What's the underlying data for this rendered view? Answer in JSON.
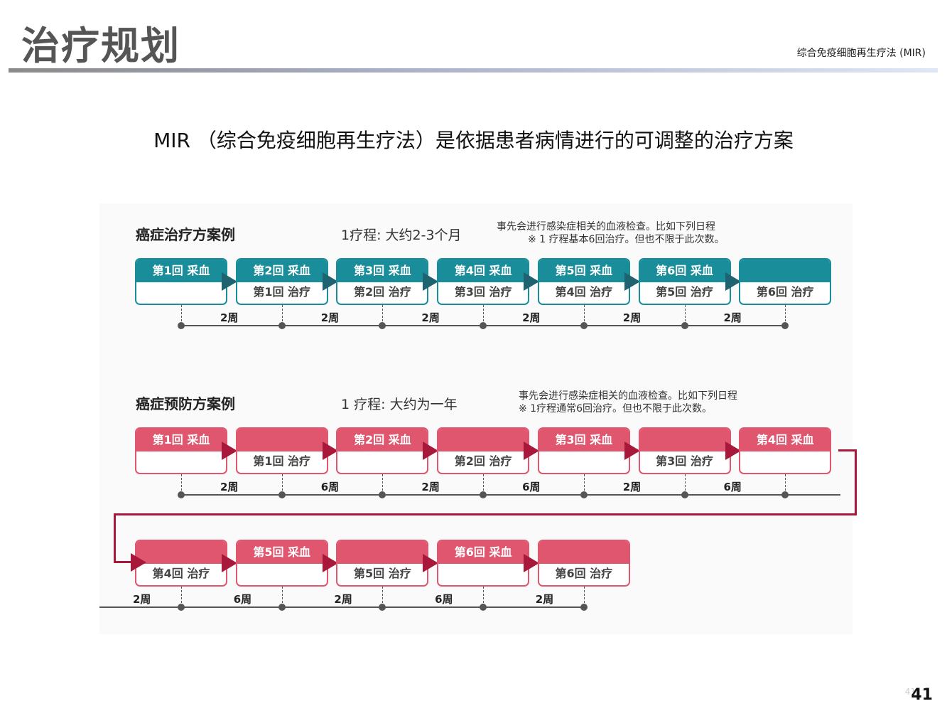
{
  "header": {
    "title": "治疗规划",
    "subtitle": "综合免疫细胞再生疗法 (MIR)"
  },
  "main_heading": "MIR （综合免疫细胞再生疗法）是依据患者病情进行的可调整的治疗方案",
  "treatment_case": {
    "title": "癌症治疗方案例",
    "course": "1疗程: 大约2-3个月",
    "note_line1": "事先会进行感染症相关的血液检查。比如下列日程",
    "note_line2": "※ 1 疗程基本6回治疗。但也不限于此次数。",
    "steps": [
      {
        "top": "第1回 采血",
        "bottom": ""
      },
      {
        "top": "第2回 采血",
        "bottom": "第1回 治疗"
      },
      {
        "top": "第3回 采血",
        "bottom": "第2回 治疗"
      },
      {
        "top": "第4回 采血",
        "bottom": "第3回 治疗"
      },
      {
        "top": "第5回 采血",
        "bottom": "第4回 治疗"
      },
      {
        "top": "第6回 采血",
        "bottom": "第5回 治疗"
      },
      {
        "top": "",
        "bottom": "第6回 治疗"
      }
    ],
    "intervals": [
      "2周",
      "2周",
      "2周",
      "2周",
      "2周",
      "2周"
    ]
  },
  "prevention_case": {
    "title": "癌症预防方案例",
    "course": "1 疗程: 大约为一年",
    "note_line1": "事先会进行感染症相关的血液检查。比如下列日程",
    "note_line2": "※ 1疗程通常6回治疗。但也不限于此次数。",
    "row1_steps": [
      {
        "top": "第1回 采血",
        "bottom": ""
      },
      {
        "top": "",
        "bottom": "第1回 治疗"
      },
      {
        "top": "第2回 采血",
        "bottom": ""
      },
      {
        "top": "",
        "bottom": "第2回 治疗"
      },
      {
        "top": "第3回 采血",
        "bottom": ""
      },
      {
        "top": "",
        "bottom": "第3回 治疗"
      },
      {
        "top": "第4回 采血",
        "bottom": ""
      }
    ],
    "row1_intervals": [
      "2周",
      "6周",
      "2周",
      "6周",
      "2周",
      "6周"
    ],
    "row2_steps": [
      {
        "top": "",
        "bottom": "第4回 治疗"
      },
      {
        "top": "第5回 采血",
        "bottom": ""
      },
      {
        "top": "",
        "bottom": "第5回 治疗"
      },
      {
        "top": "第6回 采血",
        "bottom": ""
      },
      {
        "top": "",
        "bottom": "第6回 治疗"
      }
    ],
    "row2_intervals": [
      "2周",
      "6周",
      "2周",
      "6周",
      "2周"
    ]
  },
  "page_number": "41",
  "page_number_ghost": "41",
  "colors": {
    "treatment": "#1a8d9a",
    "treatment_arrow": "#1f6370",
    "prevention": "#e0566f",
    "prevention_arrow": "#a8183b"
  }
}
